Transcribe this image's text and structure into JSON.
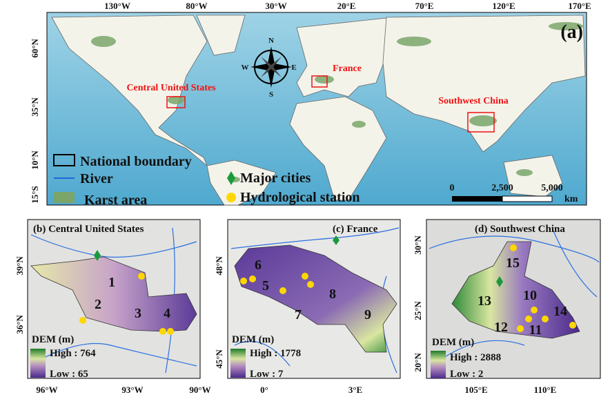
{
  "map_a": {
    "label": "(a)",
    "lon_labels": [
      "130°W",
      "80°W",
      "30°W",
      "20°E",
      "70°E",
      "120°E",
      "170°E"
    ],
    "lat_labels": [
      "60°N",
      "35°N",
      "10°N",
      "15°S"
    ],
    "regions": [
      "Central United States",
      "France",
      "Southwest China"
    ],
    "compass": {
      "n": "N",
      "e": "E",
      "s": "S",
      "w": "W"
    },
    "legend": [
      "National boundary",
      "River",
      "Karst area",
      "Major cities",
      "Hydrological station"
    ],
    "scale": {
      "ticks": [
        "0",
        "2,500",
        "5,000"
      ],
      "unit": "km"
    }
  },
  "panel_b": {
    "title": "(b) Central United States",
    "lat_labels": [
      "39°N",
      "36°N"
    ],
    "lon_labels": [
      "96°W",
      "93°W",
      "90°W"
    ],
    "basins": [
      "1",
      "2",
      "3",
      "4"
    ],
    "dem_title": "DEM (m)",
    "dem_high": "High : 764",
    "dem_low": "Low : 65"
  },
  "panel_c": {
    "title": "(c) France",
    "lat_labels": [
      "48°N",
      "45°N"
    ],
    "lon_labels": [
      "0°",
      "3°E"
    ],
    "basins": [
      "6",
      "5",
      "7",
      "8",
      "9"
    ],
    "dem_title": "DEM (m)",
    "dem_high": "High : 1778",
    "dem_low": "Low : 7"
  },
  "panel_d": {
    "title": "(d) Southwest China",
    "lat_labels": [
      "30°N",
      "25°N",
      "20°N"
    ],
    "lon_labels": [
      "105°E",
      "110°E"
    ],
    "basins": [
      "15",
      "13",
      "10",
      "14",
      "12",
      "11"
    ],
    "dem_title": "DEM (m)",
    "dem_high": "High : 2888",
    "dem_low": "Low : 2"
  }
}
